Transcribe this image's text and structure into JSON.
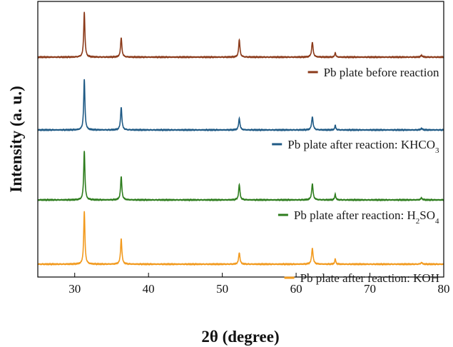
{
  "chart_data": {
    "type": "line",
    "xlabel": "2θ (degree)",
    "ylabel": "Intensity (a. u.)",
    "xlim": [
      25,
      80
    ],
    "x_ticks": [
      "30",
      "40",
      "50",
      "60",
      "70",
      "80"
    ],
    "y_ticks_shown": false,
    "grid": false,
    "legend_placement": "below each trace, right side",
    "peaks_2theta": [
      31.3,
      36.3,
      52.3,
      62.2,
      65.3,
      77.0
    ],
    "series": [
      {
        "name": "Pb plate before reaction",
        "legend": [
          "Pb plate before reaction"
        ],
        "color": "#8B3A1A",
        "offset": 3,
        "peak_heights": [
          1.0,
          0.43,
          0.38,
          0.33,
          0.1,
          0.04
        ]
      },
      {
        "name": "Pb plate after reaction: KHCO3",
        "legend": [
          "Pb plate after reaction: KHCO",
          "3",
          ""
        ],
        "color": "#1F5A85",
        "offset": 2,
        "peak_heights": [
          1.0,
          0.45,
          0.23,
          0.26,
          0.09,
          0.03
        ]
      },
      {
        "name": "Pb plate after reaction: H2SO4",
        "legend": [
          "Pb plate after reaction: H",
          "2",
          "SO",
          "4"
        ],
        "color": "#2E7D1E",
        "offset": 1,
        "peak_heights": [
          1.0,
          0.47,
          0.31,
          0.32,
          0.12,
          0.04
        ]
      },
      {
        "name": "Pb plate after reaction: KOH",
        "legend": [
          "Pb plate after reaction: KOH"
        ],
        "color": "#F29A1E",
        "offset": 0,
        "peak_heights": [
          1.0,
          0.48,
          0.22,
          0.3,
          0.1,
          0.03
        ]
      }
    ]
  }
}
